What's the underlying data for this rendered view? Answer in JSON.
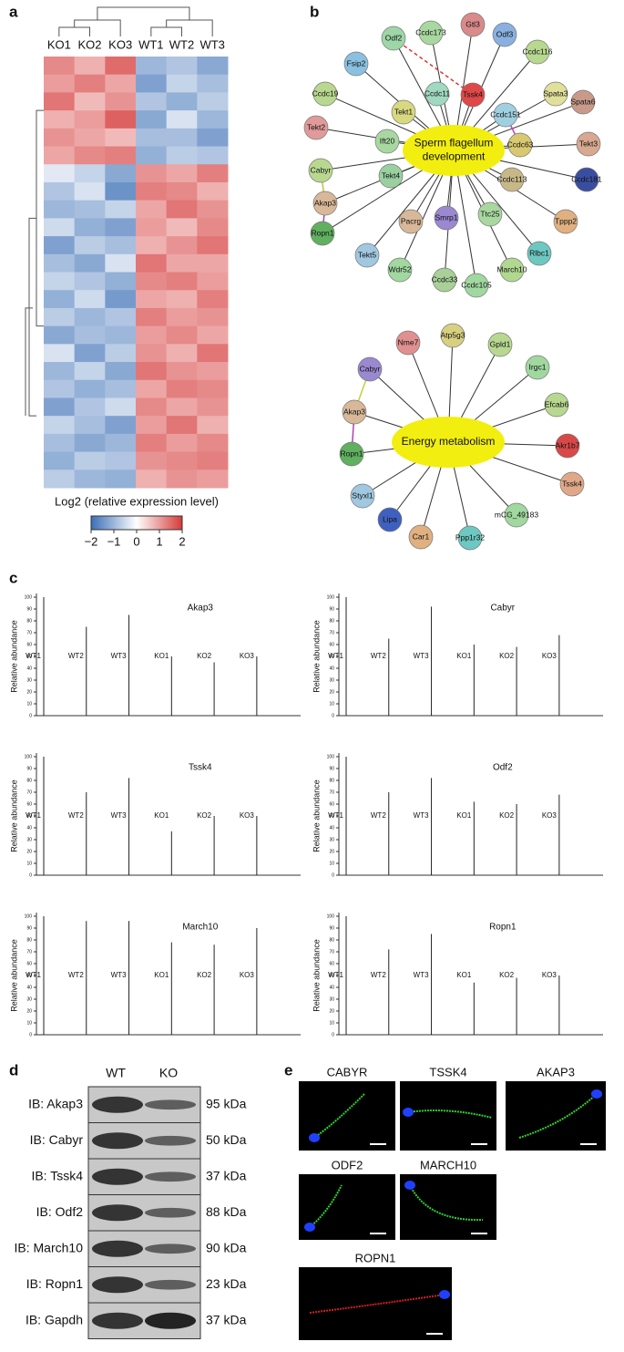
{
  "panels": {
    "a": {
      "label": "a",
      "columns": [
        "KO1",
        "KO2",
        "KO3",
        "WT1",
        "WT2",
        "WT3"
      ],
      "values": [
        [
          1.2,
          0.8,
          1.5,
          -1.0,
          -0.8,
          -1.2
        ],
        [
          1.0,
          1.3,
          0.9,
          -1.3,
          -0.6,
          -0.9
        ],
        [
          1.4,
          0.7,
          1.1,
          -0.8,
          -1.1,
          -0.7
        ],
        [
          0.8,
          1.0,
          1.6,
          -1.2,
          -0.4,
          -1.0
        ],
        [
          1.1,
          0.9,
          0.7,
          -0.9,
          -0.9,
          -1.3
        ],
        [
          0.9,
          1.2,
          1.3,
          -1.1,
          -0.7,
          -0.8
        ],
        [
          -0.3,
          -0.6,
          -1.2,
          1.1,
          0.9,
          1.3
        ],
        [
          -0.8,
          -0.4,
          -1.5,
          1.3,
          1.2,
          0.8
        ],
        [
          -1.0,
          -0.9,
          -0.6,
          0.9,
          1.4,
          1.1
        ],
        [
          -0.5,
          -1.1,
          -1.3,
          1.0,
          0.7,
          1.2
        ],
        [
          -1.3,
          -0.7,
          -0.9,
          0.8,
          1.1,
          1.4
        ],
        [
          -0.9,
          -1.2,
          -0.4,
          1.4,
          0.9,
          0.9
        ],
        [
          -0.6,
          -0.8,
          -1.1,
          1.2,
          1.3,
          1.0
        ],
        [
          -1.1,
          -0.5,
          -1.4,
          0.9,
          0.8,
          1.3
        ],
        [
          -0.7,
          -1.0,
          -0.8,
          1.3,
          1.0,
          1.1
        ],
        [
          -1.2,
          -0.9,
          -1.0,
          1.0,
          1.2,
          0.9
        ],
        [
          -0.4,
          -1.3,
          -0.7,
          1.1,
          0.8,
          1.4
        ],
        [
          -1.0,
          -0.6,
          -1.2,
          1.4,
          1.1,
          1.0
        ],
        [
          -0.8,
          -1.1,
          -0.9,
          0.9,
          1.3,
          1.2
        ],
        [
          -1.3,
          -0.8,
          -0.5,
          1.2,
          0.9,
          1.1
        ],
        [
          -0.6,
          -0.9,
          -1.3,
          1.0,
          1.4,
          0.8
        ],
        [
          -0.9,
          -1.2,
          -1.0,
          1.3,
          1.0,
          1.2
        ],
        [
          -1.1,
          -0.7,
          -0.8,
          1.1,
          1.2,
          1.3
        ],
        [
          -0.7,
          -1.0,
          -1.1,
          0.8,
          1.1,
          1.0
        ]
      ],
      "colorbar_title": "Log2 (relative expression level)",
      "clim": [
        -2,
        2
      ],
      "colorbar_ticks": [
        {
          "value": -2,
          "label": "−2"
        },
        {
          "value": -1,
          "label": "−1"
        },
        0,
        1,
        2
      ],
      "colors": [
        "#3b6fb6",
        "#ffffff",
        "#d63a3a"
      ]
    },
    "b": {
      "label": "b",
      "networks": [
        {
          "hub": "Sperm flagellum development",
          "hub_color": "#f2ee10",
          "nodes": [
            {
              "name": "Odf2",
              "color": "#9ed6a8"
            },
            {
              "name": "Ccdc173",
              "color": "#a8d8a0"
            },
            {
              "name": "Gtl3",
              "color": "#d98a8a"
            },
            {
              "name": "Odf3",
              "color": "#8ab0e0"
            },
            {
              "name": "Ccdc116",
              "color": "#b8d890"
            },
            {
              "name": "Fsip2",
              "color": "#8ac0e0"
            },
            {
              "name": "Spata3",
              "color": "#e0e09a"
            },
            {
              "name": "Ccdc19",
              "color": "#b8d890"
            },
            {
              "name": "Tssk4",
              "color": "#e04848"
            },
            {
              "name": "Ccdc11",
              "color": "#a0d8c0"
            },
            {
              "name": "Tekt1",
              "color": "#d8d880"
            },
            {
              "name": "Spata6",
              "color": "#c99a8a"
            },
            {
              "name": "Ccdc151",
              "color": "#a0d0e0"
            },
            {
              "name": "Tekt2",
              "color": "#e09a9a"
            },
            {
              "name": "Ift20",
              "color": "#a8d8a0"
            },
            {
              "name": "Ccdc63",
              "color": "#d8c870"
            },
            {
              "name": "Tekt3",
              "color": "#d8a890"
            },
            {
              "name": "Cabyr",
              "color": "#b8d890"
            },
            {
              "name": "Tekt4",
              "color": "#9ad0a0"
            },
            {
              "name": "Ccdc113",
              "color": "#c8b888"
            },
            {
              "name": "Ccdc181",
              "color": "#3a4ea0"
            },
            {
              "name": "Akap3",
              "color": "#d8b898"
            },
            {
              "name": "Pacrg",
              "color": "#d8b898"
            },
            {
              "name": "Smrp1",
              "color": "#9a88d0"
            },
            {
              "name": "Ttc25",
              "color": "#a8d8a0"
            },
            {
              "name": "Tppp2",
              "color": "#e0b080"
            },
            {
              "name": "Ropn1",
              "color": "#60b060"
            },
            {
              "name": "Tekt5",
              "color": "#a0c8e0"
            },
            {
              "name": "Rlbc1",
              "color": "#6cc8c0"
            },
            {
              "name": "Wdr52",
              "color": "#a0d8a0"
            },
            {
              "name": "Ccdc33",
              "color": "#a8d098"
            },
            {
              "name": "Ccdc105",
              "color": "#a0d8a0"
            },
            {
              "name": "March10",
              "color": "#b0d890"
            }
          ]
        },
        {
          "hub": "Energy metabolism",
          "hub_color": "#f2ee10",
          "nodes": [
            {
              "name": "Nme7",
              "color": "#e09090"
            },
            {
              "name": "Atp5g3",
              "color": "#d8d080"
            },
            {
              "name": "Gpld1",
              "color": "#b8d890"
            },
            {
              "name": "Cabyr",
              "color": "#9a88d0"
            },
            {
              "name": "Irgc1",
              "color": "#a0d8a0"
            },
            {
              "name": "Akap3",
              "color": "#d8b898"
            },
            {
              "name": "Efcab6",
              "color": "#b8d890"
            },
            {
              "name": "Ropn1",
              "color": "#60b060"
            },
            {
              "name": "Akr1b7",
              "color": "#d84848"
            },
            {
              "name": "Styxl1",
              "color": "#a0c8e0"
            },
            {
              "name": "Tssk4",
              "color": "#e0a888"
            },
            {
              "name": "Lipa",
              "color": "#4060c0"
            },
            {
              "name": "Car1",
              "color": "#e0b080"
            },
            {
              "name": "Ppp1r32",
              "color": "#6cc8c0"
            },
            {
              "name": "mCG_49183",
              "color": "#a0d8a0"
            }
          ]
        }
      ]
    },
    "c": {
      "label": "c",
      "y_label": "Relative abundance",
      "samples": [
        "WT1",
        "WT2",
        "WT3",
        "KO1",
        "KO2",
        "KO3"
      ],
      "ylim": [
        0,
        100
      ],
      "yticks": [
        0,
        10,
        20,
        30,
        40,
        50,
        60,
        70,
        80,
        90,
        100
      ],
      "plots": [
        {
          "protein": "Akap3",
          "values": [
            100,
            75,
            85,
            50,
            45,
            50
          ]
        },
        {
          "protein": "Cabyr",
          "values": [
            100,
            65,
            92,
            60,
            58,
            68
          ]
        },
        {
          "protein": "Tssk4",
          "values": [
            100,
            70,
            82,
            37,
            50,
            50
          ]
        },
        {
          "protein": "Odf2",
          "values": [
            100,
            70,
            82,
            62,
            60,
            68
          ]
        },
        {
          "protein": "March10",
          "values": [
            100,
            96,
            96,
            78,
            76,
            90
          ]
        },
        {
          "protein": "Ropn1",
          "values": [
            100,
            72,
            85,
            44,
            48,
            50
          ]
        }
      ]
    },
    "d": {
      "label": "d",
      "columns": [
        "WT",
        "KO"
      ],
      "rows": [
        {
          "label": "IB: Akap3",
          "size": "95 kDa"
        },
        {
          "label": "IB: Cabyr",
          "size": "50 kDa"
        },
        {
          "label": "IB: Tssk4",
          "size": "37 kDa"
        },
        {
          "label": "IB: Odf2",
          "size": "88 kDa"
        },
        {
          "label": "IB: March10",
          "size": "90 kDa"
        },
        {
          "label": "IB: Ropn1",
          "size": "23 kDa"
        },
        {
          "label": "IB: Gapdh",
          "size": "37 kDa"
        }
      ]
    },
    "e": {
      "label": "e",
      "images": [
        {
          "name": "CABYR",
          "color": "#30d030"
        },
        {
          "name": "TSSK4",
          "color": "#30d030"
        },
        {
          "name": "AKAP3",
          "color": "#30d030"
        },
        {
          "name": "ODF2",
          "color": "#30d030"
        },
        {
          "name": "MARCH10",
          "color": "#30d030"
        },
        {
          "name": "ROPN1",
          "color": "#d02020"
        }
      ]
    }
  }
}
